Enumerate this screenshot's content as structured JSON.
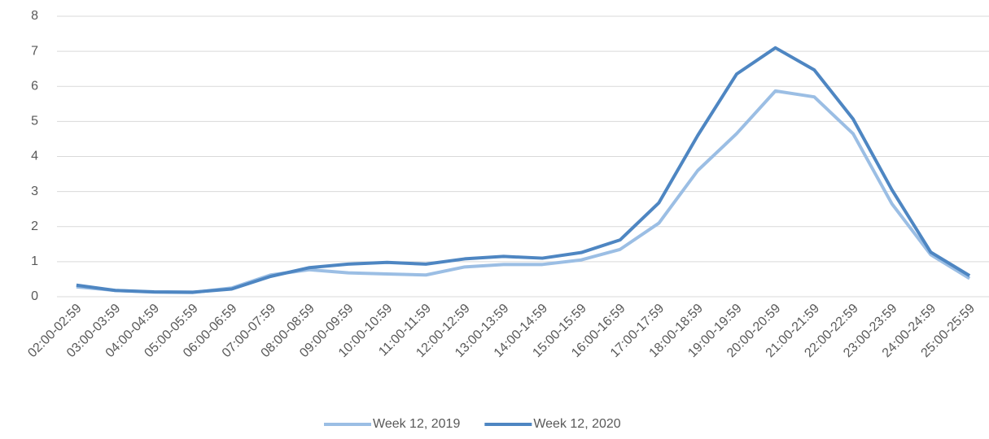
{
  "chart_data": {
    "type": "line",
    "categories": [
      "02:00-02:59",
      "03:00-03:59",
      "04:00-04:59",
      "05:00-05:59",
      "06:00-06:59",
      "07:00-07:59",
      "08:00-08:59",
      "09:00-09:59",
      "10:00-10:59",
      "11:00-11:59",
      "12:00-12:59",
      "13:00-13:59",
      "14:00-14:59",
      "15:00-15:59",
      "16:00-16:59",
      "17:00-17:59",
      "18:00-18:59",
      "19:00-19:59",
      "20:00-20:59",
      "21:00-21:59",
      "22:00-22:59",
      "23:00-23:59",
      "24:00-24:59",
      "25:00-25:59"
    ],
    "series": [
      {
        "name": "Week 12, 2019",
        "color": "#9bbee4",
        "values": [
          0.28,
          0.18,
          0.13,
          0.12,
          0.25,
          0.62,
          0.77,
          0.68,
          0.65,
          0.62,
          0.85,
          0.92,
          0.92,
          1.05,
          1.35,
          2.1,
          3.6,
          4.65,
          5.87,
          5.7,
          4.65,
          2.65,
          1.2,
          0.52
        ]
      },
      {
        "name": "Week 12, 2020",
        "color": "#4e86c2",
        "values": [
          0.33,
          0.18,
          0.14,
          0.13,
          0.22,
          0.58,
          0.83,
          0.93,
          0.98,
          0.93,
          1.08,
          1.15,
          1.1,
          1.26,
          1.62,
          2.68,
          4.6,
          6.35,
          7.1,
          6.47,
          5.07,
          3.05,
          1.27,
          0.6
        ]
      }
    ],
    "ylim": [
      0,
      8
    ],
    "yticks": [
      0,
      1,
      2,
      3,
      4,
      5,
      6,
      7,
      8
    ],
    "grid": true,
    "legend": "bottom"
  }
}
